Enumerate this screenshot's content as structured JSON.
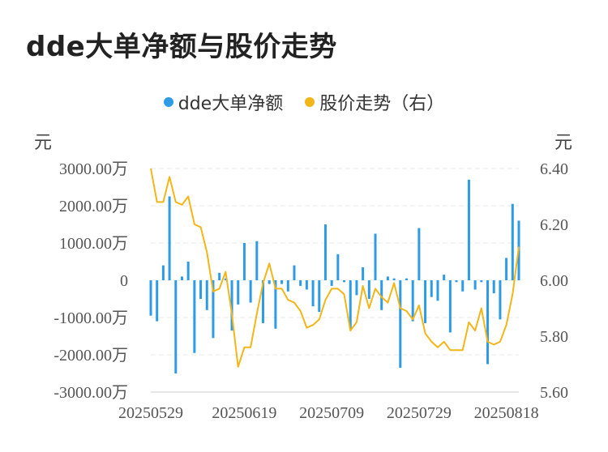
{
  "title": "dde大单净额与股价走势",
  "legend": [
    {
      "label": "dde大单净额",
      "color": "#2e9be6"
    },
    {
      "label": "股价走势（右）",
      "color": "#f2b619"
    }
  ],
  "units": {
    "left": "元",
    "right": "元"
  },
  "chart_data": {
    "type": "bar+line",
    "title": "dde大单净额与股价走势",
    "y_left": {
      "ticks": [
        "3000.00万",
        "2000.00万",
        "1000.00万",
        "0",
        "-1000.00万",
        "-2000.00万",
        "-3000.00万"
      ],
      "ylim": [
        -3000,
        3000
      ],
      "unit": "元"
    },
    "y_right": {
      "ticks": [
        "6.40",
        "6.20",
        "6.00",
        "5.80",
        "5.60"
      ],
      "ylim": [
        5.6,
        6.4
      ],
      "unit": "元"
    },
    "x_tick_labels": [
      "20250529",
      "20250619",
      "20250709",
      "20250729",
      "20250818"
    ],
    "x_tick_positions": [
      0,
      15,
      29,
      43,
      57
    ],
    "series": [
      {
        "name": "dde大单净额",
        "type": "bar",
        "color": "#2e9be6",
        "values": [
          -950,
          -1100,
          400,
          2250,
          -2500,
          100,
          500,
          -1950,
          -500,
          -800,
          -1550,
          200,
          50,
          -1350,
          -650,
          1000,
          -600,
          1050,
          -1150,
          -100,
          -1300,
          -100,
          -300,
          400,
          -150,
          -250,
          -700,
          -850,
          1500,
          -150,
          700,
          -50,
          -1300,
          -400,
          350,
          -500,
          1250,
          -800,
          100,
          50,
          -2350,
          50,
          -1100,
          1400,
          -1150,
          -450,
          -550,
          150,
          -1400,
          -50,
          -300,
          2700,
          -250,
          -50,
          -2250,
          -350,
          -1050,
          600,
          2050,
          1600
        ]
      },
      {
        "name": "股价走势（右）",
        "type": "line",
        "color": "#f2b619",
        "values": [
          6.4,
          6.28,
          6.28,
          6.37,
          6.28,
          6.27,
          6.3,
          6.2,
          6.19,
          6.1,
          5.96,
          5.97,
          6.03,
          5.88,
          5.69,
          5.76,
          5.76,
          5.88,
          5.99,
          6.06,
          5.97,
          5.97,
          5.93,
          5.92,
          5.89,
          5.83,
          5.84,
          5.86,
          5.93,
          5.97,
          5.97,
          5.95,
          5.82,
          5.85,
          5.98,
          5.9,
          5.97,
          5.94,
          5.92,
          5.99,
          5.9,
          5.89,
          5.86,
          5.91,
          5.81,
          5.78,
          5.76,
          5.78,
          5.75,
          5.75,
          5.75,
          5.85,
          5.82,
          5.9,
          5.78,
          5.77,
          5.78,
          5.84,
          5.95,
          6.12
        ]
      }
    ],
    "grid": true,
    "legend_position": "top-center"
  }
}
